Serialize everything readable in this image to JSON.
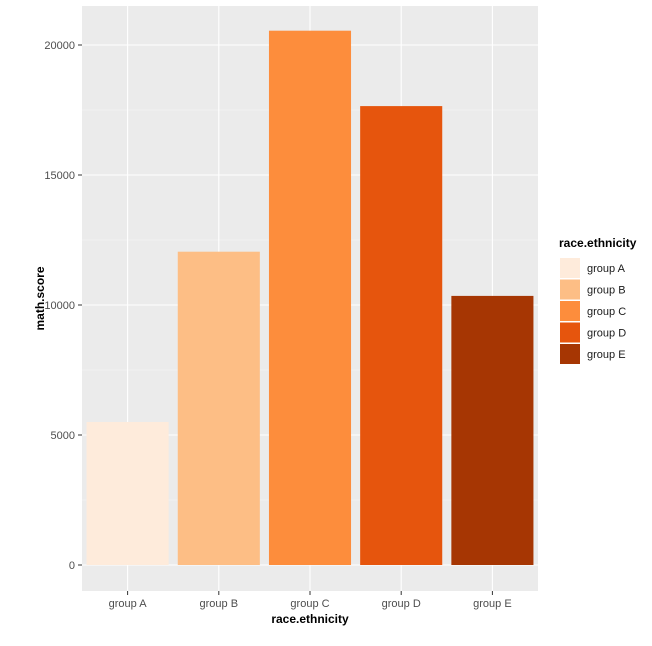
{
  "chart_data": {
    "type": "bar",
    "categories": [
      "group A",
      "group B",
      "group C",
      "group D",
      "group E"
    ],
    "values": [
      5500,
      12050,
      20550,
      17650,
      10350
    ],
    "colors": [
      "#feebdb",
      "#fdbe85",
      "#fd8d3c",
      "#e6550d",
      "#a63603"
    ],
    "title": "",
    "xlabel": "race.ethnicity",
    "ylabel": "math.score",
    "ylim": [
      -1000,
      21500
    ],
    "yticks": [
      0,
      5000,
      10000,
      15000,
      20000
    ],
    "ytick_labels": [
      "0",
      "5000",
      "10000",
      "15000",
      "20000"
    ],
    "grid": true,
    "legend": {
      "title": "race.ethnicity",
      "position": "right",
      "entries": [
        "group A",
        "group B",
        "group C",
        "group D",
        "group E"
      ]
    }
  }
}
